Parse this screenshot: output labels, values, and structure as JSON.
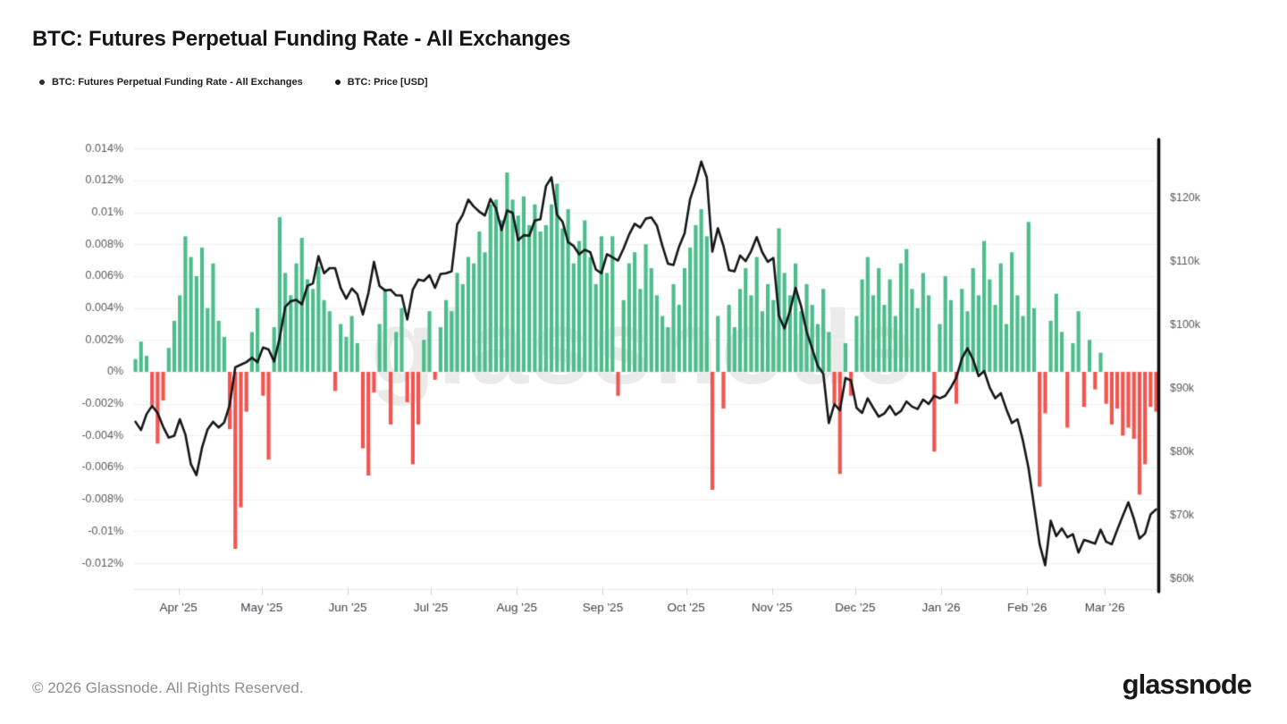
{
  "title": "BTC: Futures Perpetual Funding Rate - All Exchanges",
  "legend": [
    {
      "label": "BTC: Futures Perpetual Funding Rate - All Exchanges",
      "color": "#2a2e35"
    },
    {
      "label": "BTC: Price [USD]",
      "color": "#16181d"
    }
  ],
  "watermark": "glassnode",
  "footer": {
    "copyright": "© 2026 Glassnode. All Rights Reserved.",
    "logo": "glassnode"
  },
  "chart_data": {
    "type": "bar",
    "title": "BTC: Futures Perpetual Funding Rate - All Exchanges",
    "x": {
      "start_date": "2025-03-16",
      "step_days": 2,
      "tick_labels": [
        "Apr '25",
        "May '25",
        "Jun '25",
        "Jul '25",
        "Aug '25",
        "Sep '25",
        "Oct '25",
        "Nov '25",
        "Dec '25",
        "Jan '26",
        "Feb '26",
        "Mar '26"
      ],
      "tick_day_offsets": [
        16,
        46,
        77,
        107,
        138,
        169,
        199,
        230,
        260,
        291,
        322,
        350
      ]
    },
    "left_axis": {
      "unit": "%",
      "min": -0.01362,
      "max": 0.01446,
      "tick_values": [
        0.014,
        0.012,
        0.01,
        0.008,
        0.006,
        0.004,
        0.002,
        0,
        -0.002,
        -0.004,
        -0.006,
        -0.008,
        -0.01,
        -0.012
      ],
      "tick_labels": [
        "0.014%",
        "0.012%",
        "0.01%",
        "0.008%",
        "0.006%",
        "0.004%",
        "0.002%",
        "0%",
        "-0.002%",
        "-0.004%",
        "-0.006%",
        "-0.008%",
        "-0.01%",
        "-0.012%"
      ]
    },
    "right_axis": {
      "unit": "USD",
      "min": 58.45,
      "max": 129.0,
      "tick_values": [
        120,
        110,
        100,
        90,
        80,
        70,
        60
      ],
      "tick_labels": [
        "$120k",
        "$110k",
        "$100k",
        "$90k",
        "$80k",
        "$70k",
        "$60k"
      ]
    },
    "series": [
      {
        "name": "BTC: Futures Perpetual Funding Rate - All Exchanges",
        "type": "bar",
        "axis": "left",
        "positive_color": "#4dbd8c",
        "negative_color": "#f3544f",
        "values": [
          0.0008,
          0.0019,
          0.001,
          -0.0021,
          -0.0045,
          -0.0018,
          0.0015,
          0.0032,
          0.0048,
          0.0085,
          0.0072,
          0.006,
          0.0078,
          0.004,
          0.0068,
          0.0032,
          0.0022,
          -0.0036,
          -0.0111,
          -0.0085,
          -0.0025,
          0.0025,
          0.004,
          -0.0015,
          -0.0055,
          0.0028,
          0.0097,
          0.0062,
          0.0048,
          0.0068,
          0.0084,
          0.0058,
          0.0052,
          0.0066,
          0.0045,
          0.0038,
          -0.0012,
          0.003,
          0.0022,
          0.0035,
          0.0018,
          -0.0048,
          -0.0065,
          -0.0013,
          0.003,
          0.0052,
          -0.0033,
          0.0025,
          0.004,
          -0.0019,
          -0.0058,
          -0.0033,
          0.002,
          0.0038,
          -0.0005,
          0.0028,
          0.0045,
          0.0038,
          0.0062,
          0.0055,
          0.0072,
          0.0068,
          0.0088,
          0.0075,
          0.0105,
          0.0108,
          0.0095,
          0.0125,
          0.0108,
          0.0098,
          0.011,
          0.0092,
          0.0105,
          0.0088,
          0.0092,
          0.0105,
          0.0118,
          0.009,
          0.0102,
          0.0068,
          0.0082,
          0.0095,
          0.0072,
          0.0055,
          0.0085,
          0.0062,
          0.0085,
          -0.0015,
          0.0045,
          0.0068,
          0.0075,
          0.0052,
          0.008,
          0.0065,
          0.0048,
          0.0035,
          0.0028,
          0.0055,
          0.0042,
          0.0065,
          0.0078,
          0.0092,
          0.0102,
          0.0085,
          -0.0074,
          0.0035,
          -0.0023,
          0.0042,
          0.0028,
          0.0052,
          0.0065,
          0.0048,
          0.0072,
          0.0038,
          0.0055,
          0.0045,
          0.009,
          0.0062,
          0.0048,
          0.0068,
          0.0038,
          0.0055,
          0.0042,
          0.003,
          0.0052,
          0.0025,
          -0.002,
          -0.0064,
          0.0018,
          -0.0015,
          0.0035,
          0.0058,
          0.0072,
          0.0048,
          0.0065,
          0.0042,
          0.0058,
          0.0035,
          0.0068,
          0.0077,
          0.0052,
          0.004,
          0.0062,
          0.0048,
          -0.005,
          0.003,
          0.006,
          0.0045,
          -0.002,
          0.0052,
          0.0038,
          0.0065,
          0.0048,
          0.0082,
          0.0058,
          0.0042,
          0.0068,
          0.003,
          0.0075,
          0.0048,
          0.0035,
          0.0094,
          0.004,
          -0.0072,
          -0.0026,
          0.0032,
          0.0049,
          0.0025,
          -0.0035,
          0.0018,
          0.0038,
          -0.0022,
          0.002,
          -0.0011,
          0.0012,
          -0.002,
          -0.0033,
          -0.0023,
          -0.004,
          -0.0035,
          -0.0042,
          -0.0077,
          -0.0058,
          -0.0022,
          -0.0025
        ]
      },
      {
        "name": "BTC: Price [USD]",
        "type": "line",
        "axis": "right",
        "color": "#14161a",
        "unit_note": "values in thousands of USD",
        "values": [
          84.8,
          83.5,
          86.0,
          87.3,
          86.2,
          84.0,
          82.3,
          82.6,
          85.2,
          82.8,
          78.1,
          76.4,
          80.7,
          83.6,
          84.8,
          83.9,
          84.7,
          87.5,
          93.4,
          93.8,
          94.2,
          94.9,
          94.2,
          96.5,
          96.2,
          94.3,
          98.0,
          102.9,
          103.8,
          104.0,
          103.3,
          106.2,
          106.6,
          110.9,
          108.2,
          109.0,
          109.0,
          105.9,
          104.2,
          105.8,
          104.9,
          101.7,
          105.1,
          110.0,
          106.2,
          105.5,
          105.6,
          104.7,
          104.7,
          100.9,
          105.6,
          107.2,
          107.0,
          107.9,
          105.9,
          108.1,
          108.2,
          108.5,
          115.9,
          117.4,
          119.8,
          118.7,
          117.9,
          117.3,
          119.9,
          118.4,
          115.0,
          118.1,
          117.7,
          113.4,
          114.2,
          114.1,
          116.5,
          116.7,
          121.9,
          123.3,
          117.4,
          116.3,
          113.1,
          112.5,
          111.2,
          111.9,
          111.5,
          108.8,
          108.2,
          111.2,
          110.7,
          110.2,
          112.1,
          114.3,
          116.0,
          115.4,
          116.8,
          117.0,
          115.7,
          112.5,
          109.7,
          109.5,
          112.4,
          114.5,
          119.9,
          122.5,
          125.8,
          123.3,
          111.6,
          115.3,
          112.5,
          108.7,
          108.5,
          111.0,
          110.1,
          111.7,
          113.9,
          111.5,
          110.0,
          110.6,
          101.5,
          99.5,
          102.3,
          105.9,
          103.0,
          99.0,
          96.3,
          93.6,
          92.4,
          84.6,
          87.6,
          86.6,
          91.7,
          91.3,
          87.0,
          86.2,
          88.5,
          87.0,
          85.6,
          86.1,
          87.3,
          85.9,
          86.5,
          88.0,
          87.2,
          86.8,
          88.3,
          87.6,
          88.9,
          88.5,
          88.9,
          90.2,
          91.8,
          94.8,
          96.4,
          94.6,
          92.0,
          92.8,
          90.2,
          88.5,
          89.3,
          86.8,
          84.6,
          85.2,
          81.8,
          77.5,
          71.5,
          65.5,
          62.2,
          69.2,
          66.8,
          68.0,
          66.6,
          67.1,
          64.2,
          66.2,
          65.9,
          65.6,
          67.8,
          65.9,
          65.5,
          67.8,
          70.0,
          72.1,
          69.5,
          66.4,
          67.2,
          70.2,
          71.0
        ]
      }
    ],
    "style": {
      "grid_color": "#efefef",
      "axis_line_color": "#e7e7e7",
      "tick_color": "#cfcfcf",
      "label_color": "#55585e",
      "month_label_color": "#3f4348",
      "right_spine_color": "#0e1013"
    }
  }
}
